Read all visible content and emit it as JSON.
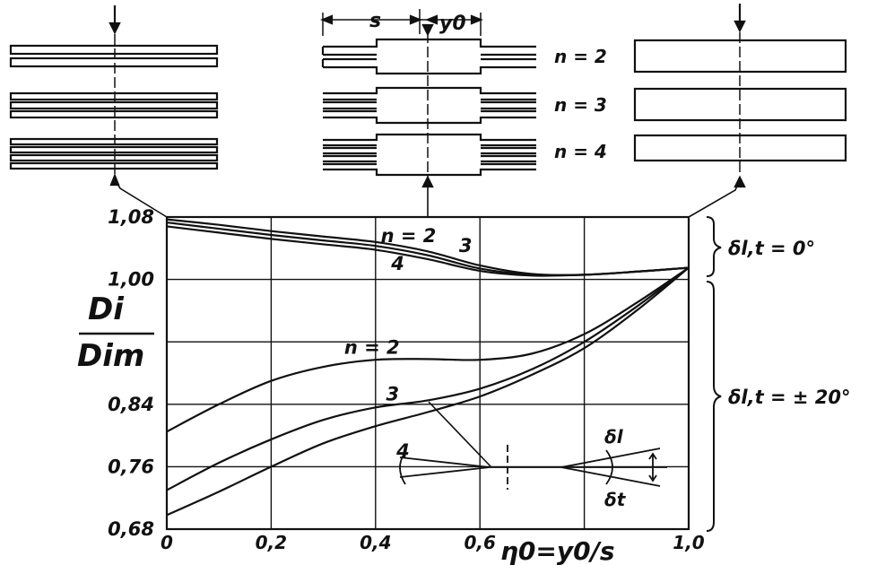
{
  "chart_data": {
    "type": "line",
    "xlabel": "η0=y0/s",
    "ylabel_num": "Di",
    "ylabel_den": "Dim",
    "xlim": [
      0,
      1.0
    ],
    "ylim": [
      0.68,
      1.08
    ],
    "x_ticks": [
      {
        "v": 0,
        "label": "0"
      },
      {
        "v": 0.2,
        "label": "0,2"
      },
      {
        "v": 0.4,
        "label": "0,4"
      },
      {
        "v": 0.6,
        "label": "0,6"
      },
      {
        "v": 1.0,
        "label": "1,0"
      }
    ],
    "y_ticks": [
      {
        "v": 1.08,
        "label": "1,08"
      },
      {
        "v": 1.0,
        "label": "1,00"
      },
      {
        "v": 0.84,
        "label": "0,84"
      },
      {
        "v": 0.76,
        "label": "0,76"
      },
      {
        "v": 0.68,
        "label": "0,68"
      }
    ],
    "grid": true,
    "groups": [
      {
        "label": "δl,t = 0°",
        "series": [
          {
            "name": "n = 2",
            "x": [
              0,
              0.1,
              0.2,
              0.3,
              0.4,
              0.5,
              0.6,
              0.7,
              0.8,
              0.9,
              1.0
            ],
            "y": [
              1.077,
              1.07,
              1.062,
              1.055,
              1.048,
              1.036,
              1.018,
              1.007,
              1.006,
              1.01,
              1.015
            ]
          },
          {
            "name": "3",
            "x": [
              0,
              0.1,
              0.2,
              0.3,
              0.4,
              0.5,
              0.6,
              0.7,
              0.8,
              0.9,
              1.0
            ],
            "y": [
              1.073,
              1.065,
              1.057,
              1.05,
              1.043,
              1.031,
              1.014,
              1.006,
              1.006,
              1.01,
              1.015
            ]
          },
          {
            "name": "4",
            "x": [
              0,
              0.1,
              0.2,
              0.3,
              0.4,
              0.5,
              0.6,
              0.7,
              0.8,
              0.9,
              1.0
            ],
            "y": [
              1.068,
              1.06,
              1.052,
              1.045,
              1.038,
              1.026,
              1.011,
              1.005,
              1.006,
              1.01,
              1.015
            ]
          }
        ]
      },
      {
        "label": "δl,t = ± 20°",
        "series": [
          {
            "name": "n = 2",
            "x": [
              0,
              0.1,
              0.2,
              0.3,
              0.4,
              0.5,
              0.6,
              0.7,
              0.8,
              0.9,
              1.0
            ],
            "y": [
              0.805,
              0.84,
              0.87,
              0.888,
              0.897,
              0.898,
              0.897,
              0.905,
              0.93,
              0.97,
              1.015
            ]
          },
          {
            "name": "3",
            "x": [
              0,
              0.1,
              0.2,
              0.3,
              0.4,
              0.5,
              0.6,
              0.7,
              0.8,
              0.9,
              1.0
            ],
            "y": [
              0.73,
              0.765,
              0.795,
              0.82,
              0.836,
              0.845,
              0.86,
              0.885,
              0.92,
              0.965,
              1.015
            ]
          },
          {
            "name": "4",
            "x": [
              0,
              0.1,
              0.2,
              0.3,
              0.4,
              0.5,
              0.6,
              0.7,
              0.8,
              0.9,
              1.0
            ],
            "y": [
              0.698,
              0.728,
              0.76,
              0.79,
              0.812,
              0.83,
              0.85,
              0.878,
              0.912,
              0.96,
              1.015
            ]
          }
        ]
      }
    ],
    "curve_labels": [
      {
        "text": "n = 2",
        "at": [
          0.41,
          1.048
        ]
      },
      {
        "text": "3",
        "at": [
          0.56,
          1.035
        ]
      },
      {
        "text": "4",
        "at": [
          0.43,
          1.012
        ]
      },
      {
        "text": "n = 2",
        "at": [
          0.34,
          0.905
        ]
      },
      {
        "text": "3",
        "at": [
          0.42,
          0.845
        ]
      },
      {
        "text": "4",
        "at": [
          0.44,
          0.772
        ]
      }
    ]
  },
  "top_labels": {
    "s": "s",
    "y0": "y0"
  },
  "n_labels": [
    "n = 2",
    "n = 3",
    "n = 4"
  ],
  "inset": {
    "delta_l": "δl",
    "delta_t": "δt"
  },
  "colors": {
    "ink": "#111111",
    "background": "#ffffff"
  }
}
